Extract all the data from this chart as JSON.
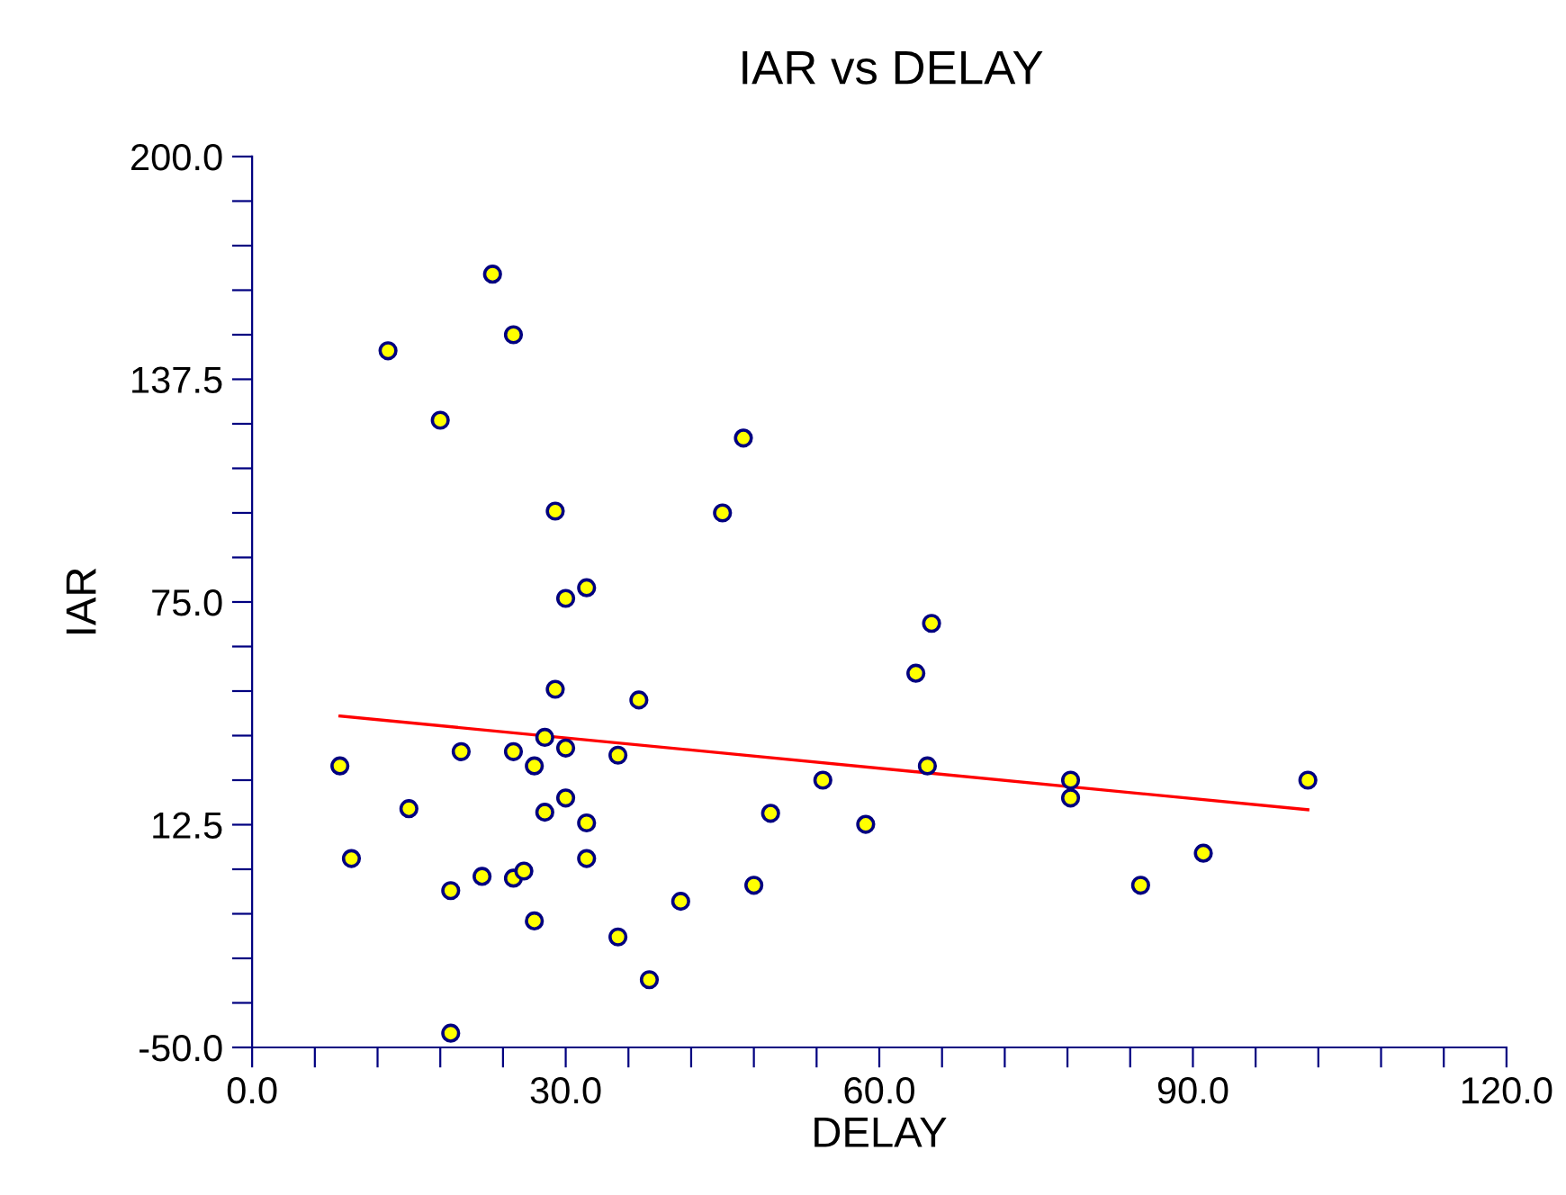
{
  "chart_data": {
    "type": "scatter",
    "title": "IAR vs DELAY",
    "xlabel": "DELAY",
    "ylabel": "IAR",
    "xlim": [
      0,
      120
    ],
    "ylim": [
      -50,
      200
    ],
    "xticks": [
      {
        "value": 0,
        "label": "0.0"
      },
      {
        "value": 6,
        "label": null
      },
      {
        "value": 12,
        "label": null
      },
      {
        "value": 18,
        "label": null
      },
      {
        "value": 24,
        "label": null
      },
      {
        "value": 30,
        "label": "30.0"
      },
      {
        "value": 36,
        "label": null
      },
      {
        "value": 42,
        "label": null
      },
      {
        "value": 48,
        "label": null
      },
      {
        "value": 54,
        "label": null
      },
      {
        "value": 60,
        "label": "60.0"
      },
      {
        "value": 66,
        "label": null
      },
      {
        "value": 72,
        "label": null
      },
      {
        "value": 78,
        "label": null
      },
      {
        "value": 84,
        "label": null
      },
      {
        "value": 90,
        "label": "90.0"
      },
      {
        "value": 96,
        "label": null
      },
      {
        "value": 102,
        "label": null
      },
      {
        "value": 108,
        "label": null
      },
      {
        "value": 114,
        "label": null
      },
      {
        "value": 120,
        "label": "120.0"
      }
    ],
    "yticks": [
      {
        "value": -50,
        "label": "-50.0"
      },
      {
        "value": -37.5,
        "label": null
      },
      {
        "value": -25,
        "label": null
      },
      {
        "value": -12.5,
        "label": null
      },
      {
        "value": 0,
        "label": null
      },
      {
        "value": 12.5,
        "label": "12.5"
      },
      {
        "value": 25,
        "label": null
      },
      {
        "value": 37.5,
        "label": null
      },
      {
        "value": 50,
        "label": null
      },
      {
        "value": 62.5,
        "label": null
      },
      {
        "value": 75,
        "label": "75.0"
      },
      {
        "value": 87.5,
        "label": null
      },
      {
        "value": 100,
        "label": null
      },
      {
        "value": 112.5,
        "label": null
      },
      {
        "value": 125,
        "label": null
      },
      {
        "value": 137.5,
        "label": "137.5"
      },
      {
        "value": 150,
        "label": null
      },
      {
        "value": 162.5,
        "label": null
      },
      {
        "value": 175,
        "label": null
      },
      {
        "value": 187.5,
        "label": null
      },
      {
        "value": 200,
        "label": "200.0"
      }
    ],
    "marker": "circle",
    "grid": false,
    "legend": false,
    "series": [
      {
        "color": "#ffff00",
        "x": [
          23,
          13,
          25,
          18,
          47,
          29,
          45,
          32,
          30,
          65,
          63.5,
          29,
          37,
          8.4,
          15,
          9.5,
          20,
          25,
          28,
          30,
          27,
          35,
          30,
          28,
          32,
          54.6,
          49.6,
          58.7,
          64.6,
          78.3,
          78.3,
          101,
          91,
          85,
          19,
          22,
          25,
          26,
          32,
          41,
          48,
          27,
          35,
          38,
          19
        ],
        "values": [
          167,
          145.5,
          150,
          126,
          121,
          100.5,
          100,
          79,
          76,
          69,
          55,
          50.5,
          47.5,
          29,
          17,
          3,
          33,
          33,
          37,
          34,
          29,
          32,
          20,
          16,
          13,
          25,
          15.7,
          12.6,
          29,
          25,
          20,
          25,
          4.5,
          -4.5,
          -6,
          -2,
          -2.5,
          -0.5,
          3,
          -9,
          -4.5,
          -14.5,
          -19,
          -31,
          -46
        ]
      },
      {
        "type": "line",
        "color": "#ff0000",
        "marker": "none",
        "x": [
          8.4,
          101
        ],
        "values": [
          43,
          16.7
        ]
      }
    ]
  }
}
